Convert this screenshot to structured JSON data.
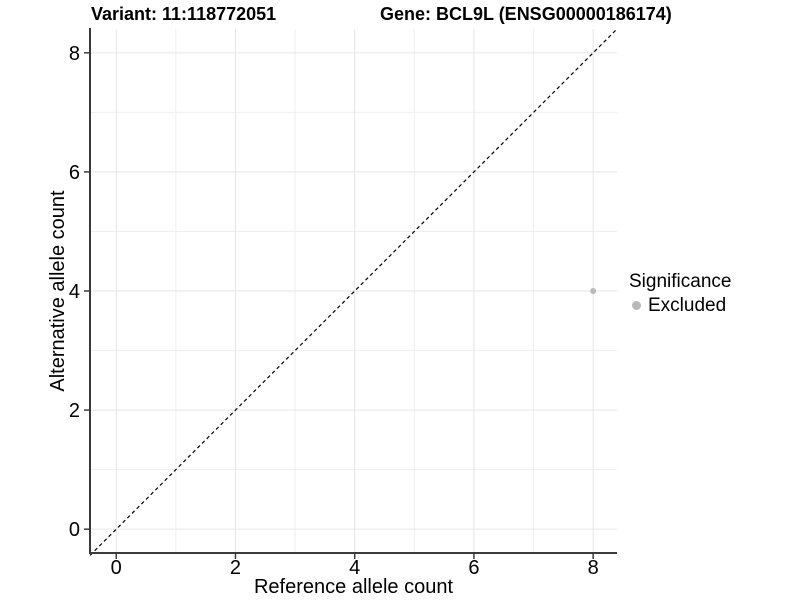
{
  "chart_data": {
    "type": "scatter",
    "title_left": "Variant: 11:118772051",
    "title_right": "Gene: BCL9L (ENSG00000186174)",
    "xlabel": "Reference allele count",
    "ylabel": "Alternative allele count",
    "xlim": [
      -0.44,
      8.4
    ],
    "ylim": [
      -0.4,
      8.4
    ],
    "xticks": [
      0,
      2,
      4,
      6,
      8
    ],
    "yticks": [
      0,
      2,
      4,
      6,
      8
    ],
    "minor_xticks": [
      1,
      3,
      5,
      7
    ],
    "minor_yticks": [
      1,
      3,
      5,
      7
    ],
    "grid": "major and minor gridlines, white panel",
    "reference_line": {
      "type": "identity y=x",
      "style": "dashed",
      "color": "#000000"
    },
    "series": [
      {
        "name": "Excluded",
        "color": "#b9b9b9",
        "points": [
          {
            "x": 8,
            "y": 4
          }
        ]
      }
    ],
    "legend": {
      "title": "Significance",
      "position": "right",
      "items": [
        {
          "label": "Excluded",
          "color": "#b9b9b9",
          "marker": "dot-icon"
        }
      ]
    },
    "style": {
      "background": "#ffffff",
      "grid_major_color": "#e6e6e6",
      "grid_minor_color": "#efefef",
      "axis_line_color": "#3a3a3a",
      "tick_color": "#3a3a3a",
      "text_color": "#000000",
      "point_radius": 3,
      "legend_marker": "filled gray circle"
    }
  }
}
